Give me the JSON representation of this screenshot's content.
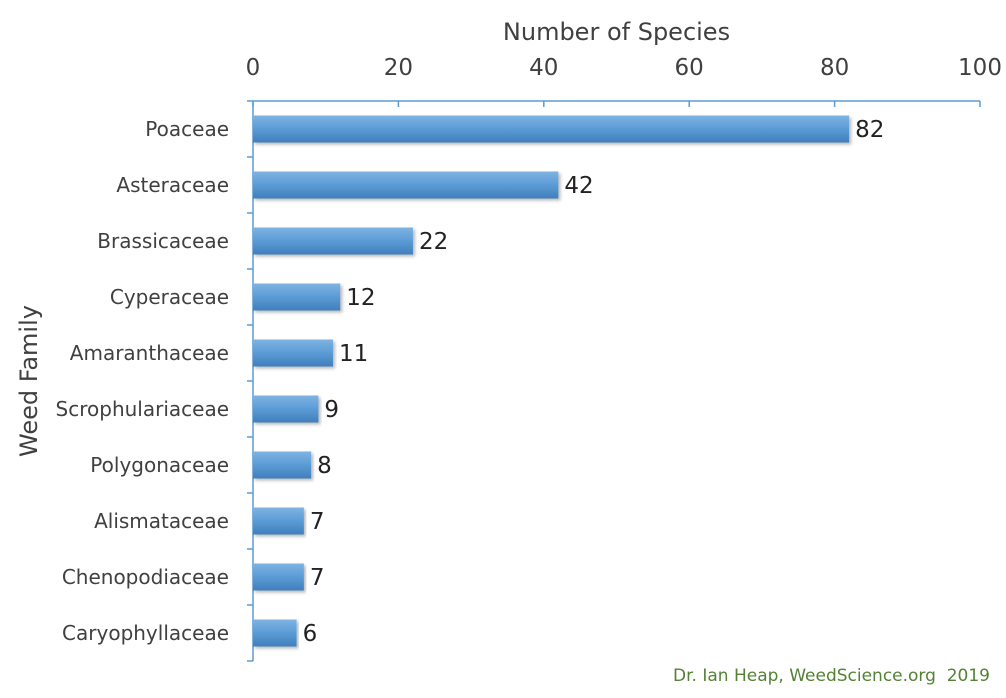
{
  "chart_data": {
    "type": "bar",
    "orientation": "horizontal",
    "title": "",
    "xlabel": "Number of Species",
    "ylabel": "Weed Family",
    "xlim": [
      0,
      100
    ],
    "xticks": [
      0,
      20,
      40,
      60,
      80,
      100
    ],
    "x_axis_position": "top",
    "grid": false,
    "legend": "none",
    "categories": [
      "Poaceae",
      "Asteraceae",
      "Brassicaceae",
      "Cyperaceae",
      "Amaranthaceae",
      "Scrophulariaceae",
      "Polygonaceae",
      "Alismataceae",
      "Chenopodiaceae",
      "Caryophyllaceae"
    ],
    "values": [
      82,
      42,
      22,
      12,
      11,
      9,
      8,
      7,
      7,
      6
    ],
    "data_labels": true,
    "bar_color": "#5b9bd5",
    "axis_color": "#5b9bd5",
    "text_color": "#404040"
  },
  "credit": {
    "text": "Dr. Ian Heap, WeedScience.org  2019",
    "color": "#548235"
  }
}
